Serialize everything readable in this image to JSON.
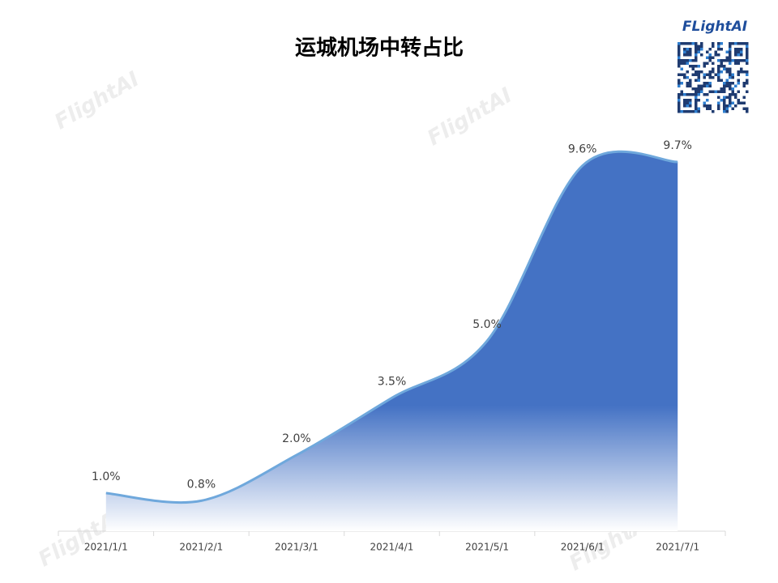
{
  "chart_data": {
    "type": "area",
    "title": "运城机场中转占比",
    "logo": "FLightAI",
    "watermark": "FlightAI",
    "categories": [
      "2021/1/1",
      "2021/2/1",
      "2021/3/1",
      "2021/4/1",
      "2021/5/1",
      "2021/6/1",
      "2021/7/1"
    ],
    "values": [
      1.0,
      0.8,
      2.0,
      3.5,
      5.0,
      9.6,
      9.7
    ],
    "value_labels": [
      "1.0%",
      "0.8%",
      "2.0%",
      "3.5%",
      "5.0%",
      "9.6%",
      "9.7%"
    ],
    "color": "#4472c4",
    "line_color": "#6fa8dc",
    "smooth": true
  }
}
